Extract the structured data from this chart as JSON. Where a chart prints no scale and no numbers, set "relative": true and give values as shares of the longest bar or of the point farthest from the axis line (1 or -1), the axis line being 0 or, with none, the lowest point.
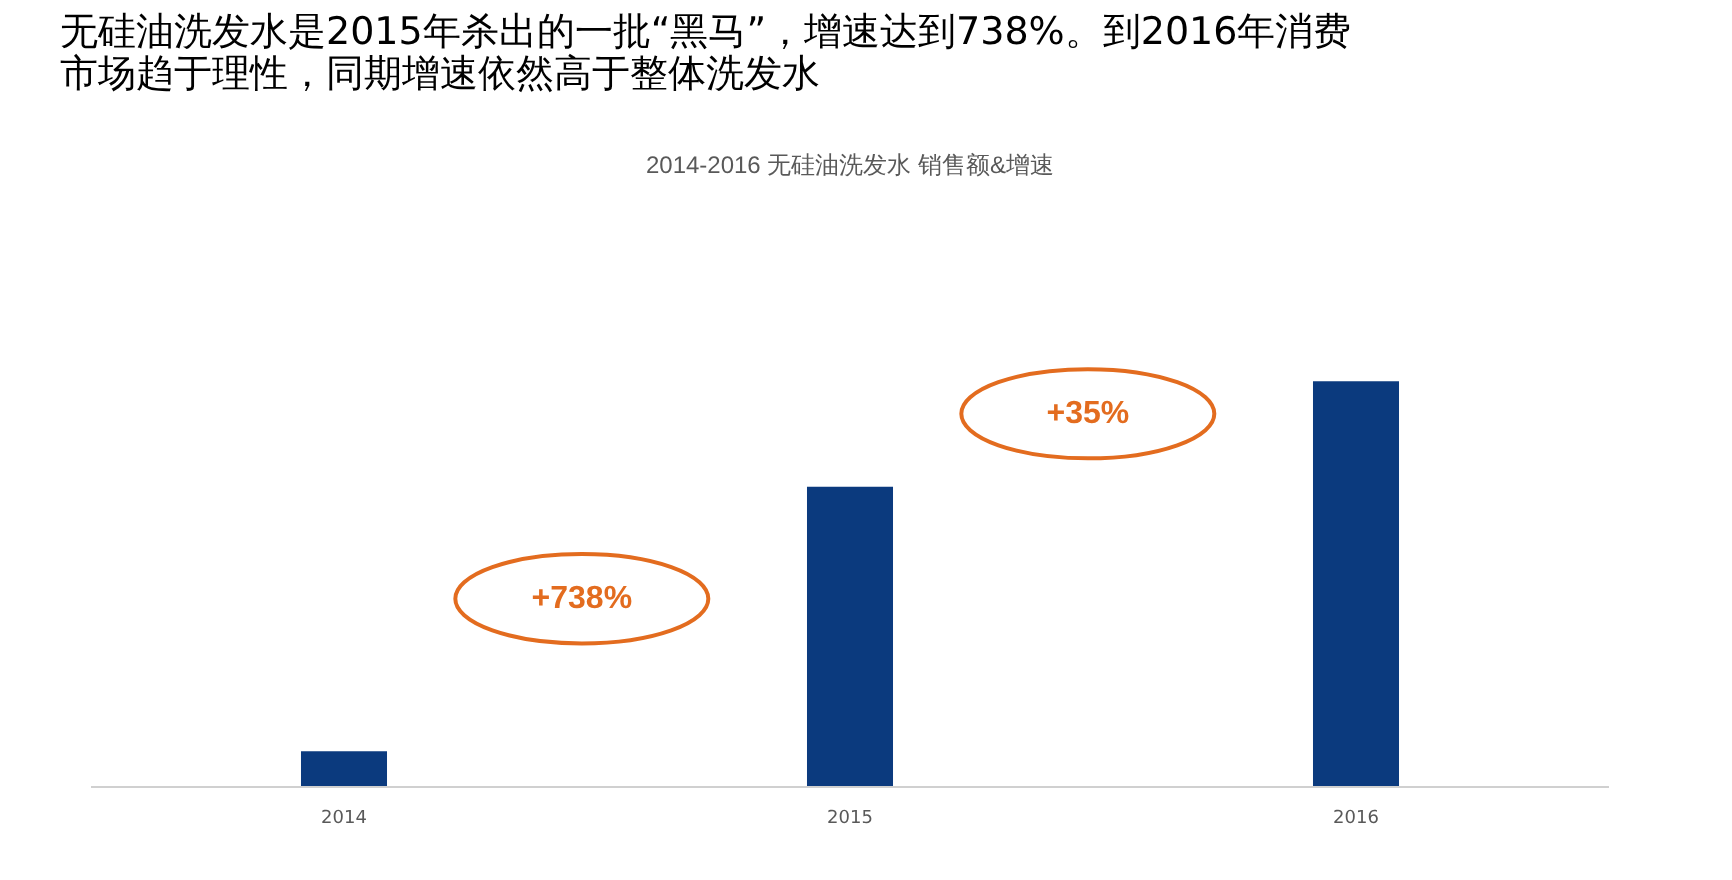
{
  "chart_data": {
    "type": "bar",
    "title": "无硅油洗发水是2015年杀出的一批“黑马”，增速达到738%。到2016年消费市场趋于理性，同期增速依然高于整体洗发水",
    "subtitle": "2014-2016 无硅油洗发水 销售额&增速",
    "categories": [
      "2014",
      "2015",
      "2016"
    ],
    "values": [
      0.088,
      0.74,
      1
    ],
    "color": "#0b3a7e",
    "relative": true,
    "annotations": [
      "+738%",
      "+35%"
    ]
  }
}
